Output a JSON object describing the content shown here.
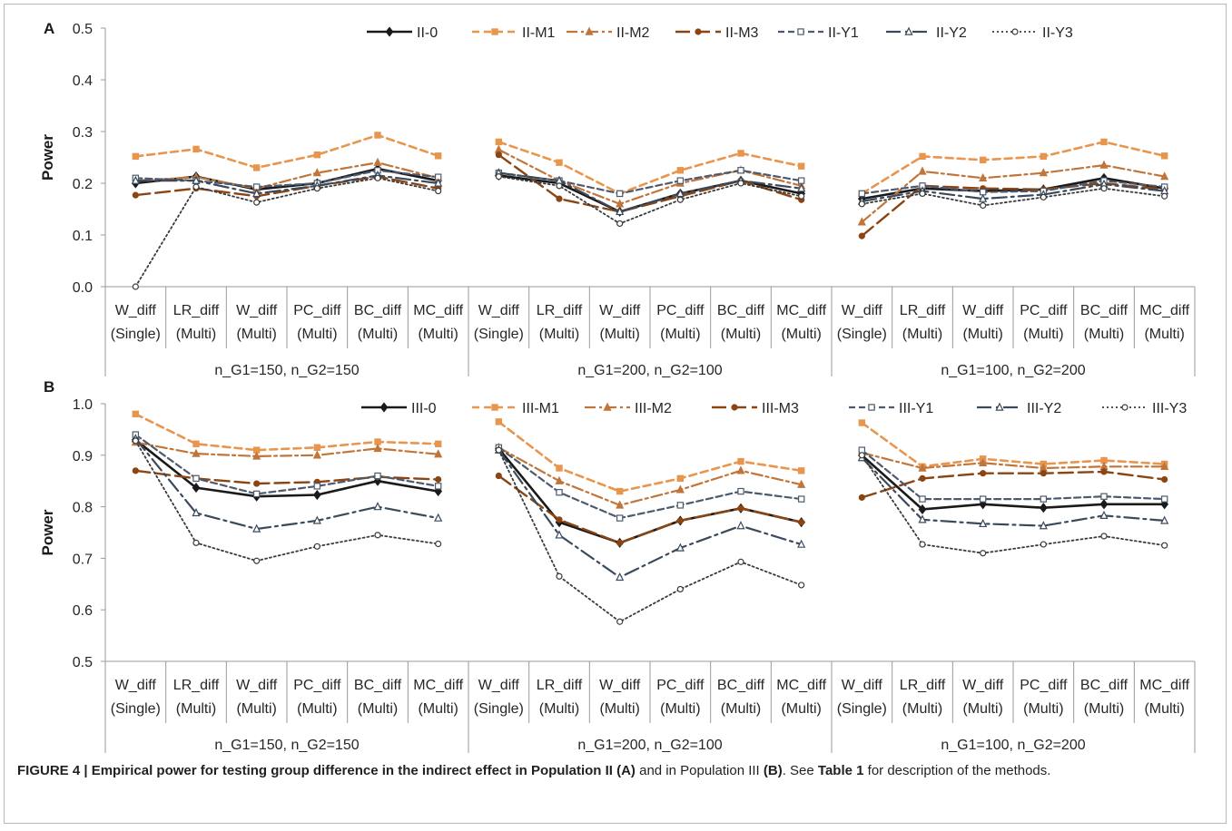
{
  "caption": {
    "label": "FIGURE 4 | Empirical power for testing group difference in the indirect effect in Population II (A)",
    "rest1": " and in Population III ",
    "label_b": "(B)",
    "rest2": ". See ",
    "table_ref": "Table 1",
    "rest3": " for description of the methods."
  },
  "chart_data": [
    {
      "type": "line",
      "panel_label": "A",
      "ylabel": "Power",
      "ylim": [
        0.0,
        0.5
      ],
      "yticks": [
        0.0,
        0.1,
        0.2,
        0.3,
        0.4,
        0.5
      ],
      "tick_decimals": 1,
      "grid": false,
      "legend_position": "top",
      "categories": [
        "W_diff (Single)",
        "LR_diff (Multi)",
        "W_diff (Multi)",
        "PC_diff (Multi)",
        "BC_diff (Multi)",
        "MC_diff (Multi)",
        "W_diff (Single)",
        "LR_diff (Multi)",
        "W_diff (Multi)",
        "PC_diff (Multi)",
        "BC_diff (Multi)",
        "MC_diff (Multi)",
        "W_diff (Single)",
        "LR_diff (Multi)",
        "W_diff (Multi)",
        "PC_diff (Multi)",
        "BC_diff (Multi)",
        "MC_diff (Multi)"
      ],
      "groups": [
        "n_G1=150, n_G2=150",
        "n_G1=200, n_G2=100",
        "n_G1=100, n_G2=200"
      ],
      "series": [
        {
          "name": "II-0",
          "color": "#1a1a1a",
          "dash": "solid",
          "width": 2.6,
          "marker": "diamond",
          "values": [
            0.2,
            0.213,
            0.188,
            0.2,
            0.228,
            0.205,
            0.215,
            0.2,
            0.145,
            0.18,
            0.205,
            0.18,
            0.17,
            0.19,
            0.185,
            0.188,
            0.21,
            0.19
          ]
        },
        {
          "name": "II-M1",
          "color": "#e8954d",
          "dash": "8,5",
          "width": 2.6,
          "marker": "square",
          "values": [
            0.252,
            0.266,
            0.23,
            0.255,
            0.293,
            0.253,
            0.28,
            0.24,
            0.18,
            0.225,
            0.258,
            0.233,
            0.18,
            0.252,
            0.245,
            0.252,
            0.28,
            0.253
          ]
        },
        {
          "name": "II-M2",
          "color": "#c0753a",
          "dash": "12,4,3,4",
          "width": 2.2,
          "marker": "triangle",
          "values": [
            0.205,
            0.212,
            0.19,
            0.22,
            0.24,
            0.21,
            0.265,
            0.205,
            0.16,
            0.2,
            0.225,
            0.195,
            0.125,
            0.223,
            0.21,
            0.22,
            0.235,
            0.213
          ]
        },
        {
          "name": "II-M3",
          "color": "#8b4513",
          "dash": "16,6",
          "width": 2.4,
          "marker": "circle",
          "values": [
            0.177,
            0.19,
            0.175,
            0.195,
            0.213,
            0.19,
            0.255,
            0.17,
            0.145,
            0.175,
            0.205,
            0.168,
            0.098,
            0.195,
            0.19,
            0.188,
            0.2,
            0.188
          ]
        },
        {
          "name": "II-Y1",
          "color": "#4d5a6e",
          "dash": "7,4",
          "width": 2.2,
          "marker": "square-open",
          "values": [
            0.21,
            0.205,
            0.193,
            0.2,
            0.225,
            0.212,
            0.22,
            0.205,
            0.18,
            0.205,
            0.225,
            0.205,
            0.18,
            0.195,
            0.183,
            0.185,
            0.205,
            0.193
          ]
        },
        {
          "name": "II-Y2",
          "color": "#3a4a5c",
          "dash": "16,5,3,5",
          "width": 2.2,
          "marker": "triangle-open",
          "values": [
            0.205,
            0.205,
            0.18,
            0.195,
            0.215,
            0.2,
            0.22,
            0.205,
            0.145,
            0.18,
            0.205,
            0.19,
            0.165,
            0.185,
            0.17,
            0.178,
            0.198,
            0.185
          ]
        },
        {
          "name": "II-Y3",
          "color": "#3a3a3a",
          "dash": "2,3",
          "width": 1.8,
          "marker": "circle-open",
          "values": [
            0.0,
            0.193,
            0.163,
            0.19,
            0.21,
            0.185,
            0.213,
            0.195,
            0.122,
            0.168,
            0.2,
            0.175,
            0.16,
            0.18,
            0.157,
            0.173,
            0.19,
            0.175
          ]
        }
      ]
    },
    {
      "type": "line",
      "panel_label": "B",
      "ylabel": "Power",
      "ylim": [
        0.5,
        1.0
      ],
      "yticks": [
        0.5,
        0.6,
        0.7,
        0.8,
        0.9,
        1.0
      ],
      "tick_decimals": 1,
      "grid": false,
      "legend_position": "top",
      "categories": [
        "W_diff (Single)",
        "LR_diff (Multi)",
        "W_diff (Multi)",
        "PC_diff (Multi)",
        "BC_diff (Multi)",
        "MC_diff (Multi)",
        "W_diff (Single)",
        "LR_diff (Multi)",
        "W_diff (Multi)",
        "PC_diff (Multi)",
        "BC_diff (Multi)",
        "MC_diff (Multi)",
        "W_diff (Single)",
        "LR_diff (Multi)",
        "W_diff (Multi)",
        "PC_diff (Multi)",
        "BC_diff (Multi)",
        "MC_diff (Multi)"
      ],
      "groups": [
        "n_G1=150, n_G2=150",
        "n_G1=200, n_G2=100",
        "n_G1=100, n_G2=200"
      ],
      "series": [
        {
          "name": "III-0",
          "color": "#1a1a1a",
          "dash": "solid",
          "width": 2.6,
          "marker": "diamond",
          "values": [
            0.93,
            0.837,
            0.82,
            0.823,
            0.85,
            0.83,
            0.913,
            0.77,
            0.73,
            0.773,
            0.797,
            0.77,
            0.9,
            0.795,
            0.805,
            0.798,
            0.805,
            0.805
          ]
        },
        {
          "name": "III-M1",
          "color": "#e8954d",
          "dash": "8,5",
          "width": 2.6,
          "marker": "square",
          "values": [
            0.98,
            0.922,
            0.91,
            0.915,
            0.926,
            0.922,
            0.965,
            0.875,
            0.83,
            0.855,
            0.888,
            0.87,
            0.963,
            0.878,
            0.893,
            0.883,
            0.89,
            0.883
          ]
        },
        {
          "name": "III-M2",
          "color": "#c0753a",
          "dash": "12,4,3,4",
          "width": 2.2,
          "marker": "triangle",
          "values": [
            0.925,
            0.903,
            0.898,
            0.9,
            0.913,
            0.902,
            0.915,
            0.85,
            0.803,
            0.833,
            0.87,
            0.843,
            0.905,
            0.875,
            0.885,
            0.875,
            0.878,
            0.878
          ]
        },
        {
          "name": "III-M3",
          "color": "#8b4513",
          "dash": "16,6",
          "width": 2.4,
          "marker": "circle",
          "values": [
            0.87,
            0.855,
            0.845,
            0.848,
            0.858,
            0.853,
            0.86,
            0.775,
            0.73,
            0.773,
            0.797,
            0.77,
            0.818,
            0.855,
            0.865,
            0.865,
            0.868,
            0.853
          ]
        },
        {
          "name": "III-Y1",
          "color": "#4d5a6e",
          "dash": "7,4",
          "width": 2.2,
          "marker": "square-open",
          "values": [
            0.94,
            0.855,
            0.825,
            0.84,
            0.86,
            0.84,
            0.915,
            0.828,
            0.778,
            0.803,
            0.83,
            0.815,
            0.91,
            0.815,
            0.815,
            0.815,
            0.82,
            0.815
          ]
        },
        {
          "name": "III-Y2",
          "color": "#3a4a5c",
          "dash": "16,5,3,5",
          "width": 2.2,
          "marker": "triangle-open",
          "values": [
            0.932,
            0.788,
            0.757,
            0.773,
            0.8,
            0.778,
            0.91,
            0.745,
            0.663,
            0.72,
            0.763,
            0.727,
            0.895,
            0.775,
            0.767,
            0.763,
            0.783,
            0.773
          ]
        },
        {
          "name": "III-Y3",
          "color": "#3a3a3a",
          "dash": "2,3",
          "width": 1.8,
          "marker": "circle-open",
          "values": [
            0.928,
            0.73,
            0.695,
            0.723,
            0.745,
            0.728,
            0.91,
            0.665,
            0.577,
            0.64,
            0.693,
            0.648,
            0.9,
            0.727,
            0.71,
            0.727,
            0.743,
            0.725
          ]
        }
      ]
    }
  ]
}
